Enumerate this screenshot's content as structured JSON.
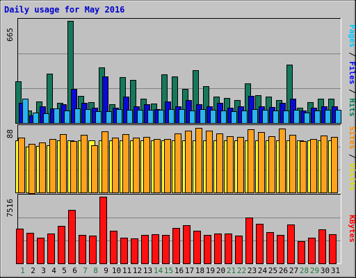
{
  "chart_data": {
    "title": "Daily usage for May 2016",
    "type": "bar",
    "categories": [
      "1",
      "2",
      "3",
      "4",
      "5",
      "6",
      "7",
      "8",
      "9",
      "10",
      "11",
      "12",
      "13",
      "14",
      "15",
      "16",
      "17",
      "18",
      "19",
      "20",
      "21",
      "22",
      "23",
      "24",
      "25",
      "26",
      "27",
      "28",
      "29",
      "30",
      "31"
    ],
    "weekend_days": [
      1,
      7,
      8,
      14,
      15,
      21,
      22,
      28,
      29
    ],
    "panels": [
      {
        "id": "top",
        "max_label": "665",
        "ymax": 665,
        "legend": [
          {
            "text": "Pages",
            "color": "#00c8ff"
          },
          {
            "text": " / ",
            "color": "#000000"
          },
          {
            "text": "Files",
            "color": "#0000ff"
          },
          {
            "text": " / ",
            "color": "#000000"
          },
          {
            "text": "Hits",
            "color": "#007a5a"
          }
        ],
        "series": [
          {
            "name": "Hits",
            "color": "#17785c",
            "values": [
              270,
              80,
              140,
              320,
              130,
              665,
              175,
              135,
              360,
              120,
              300,
              280,
              160,
              125,
              315,
              305,
              220,
              345,
              240,
              170,
              165,
              150,
              260,
              180,
              170,
              150,
              380,
              100,
              135,
              160,
              160
            ]
          },
          {
            "name": "Files",
            "color": "#0a0ad2",
            "values": [
              130,
              50,
              110,
              95,
              120,
              220,
              130,
              100,
              305,
              100,
              170,
              110,
              120,
              90,
              140,
              110,
              150,
              120,
              110,
              130,
              100,
              110,
              175,
              110,
              105,
              130,
              160,
              80,
              100,
              110,
              110
            ]
          },
          {
            "name": "Pages",
            "color": "#2bb4f0",
            "values": [
              160,
              70,
              65,
              95,
              80,
              95,
              90,
              75,
              75,
              90,
              85,
              85,
              85,
              85,
              90,
              90,
              80,
              90,
              85,
              80,
              75,
              80,
              90,
              85,
              80,
              80,
              85,
              70,
              80,
              85,
              85
            ]
          }
        ]
      },
      {
        "id": "mid",
        "max_label": "88",
        "ymax": 88,
        "legend": [
          {
            "text": "Sites",
            "color": "#ff8800"
          },
          {
            "text": " / ",
            "color": "#000000"
          },
          {
            "text": "Visits",
            "color": "#dddd00"
          }
        ],
        "series": [
          {
            "name": "Visits",
            "color": "#ffff30",
            "values": [
              70,
              62,
              63,
              64,
              70,
              70,
              70,
              70,
              70,
              70,
              70,
              70,
              70,
              70,
              70,
              70,
              70,
              70,
              70,
              70,
              70,
              70,
              70,
              70,
              70,
              70,
              70,
              70,
              70,
              70,
              70
            ]
          },
          {
            "name": "Sites",
            "color": "#ffa21e",
            "values": [
              74,
              66,
              67,
              72,
              79,
              69,
              78,
              64,
              82,
              74,
              79,
              74,
              75,
              72,
              72,
              80,
              83,
              87,
              83,
              80,
              76,
              75,
              85,
              81,
              76,
              86,
              78,
              69,
              72,
              77,
              75
            ]
          }
        ]
      },
      {
        "id": "bot",
        "max_label": "7516",
        "ymax": 7516,
        "legend": [
          {
            "text": "KBytes",
            "color": "#ff0000"
          }
        ],
        "series": [
          {
            "name": "KBytes",
            "color": "#ff1010",
            "values": [
              3900,
              3450,
              2900,
              3400,
              4200,
              6000,
              3200,
              3100,
              7516,
              3700,
              2900,
              2800,
              3200,
              3300,
              3200,
              4000,
              4300,
              3700,
              3200,
              3400,
              3400,
              3100,
              5200,
              4500,
              3500,
              3200,
              4400,
              2500,
              2900,
              3800,
              3300
            ]
          }
        ]
      }
    ]
  }
}
